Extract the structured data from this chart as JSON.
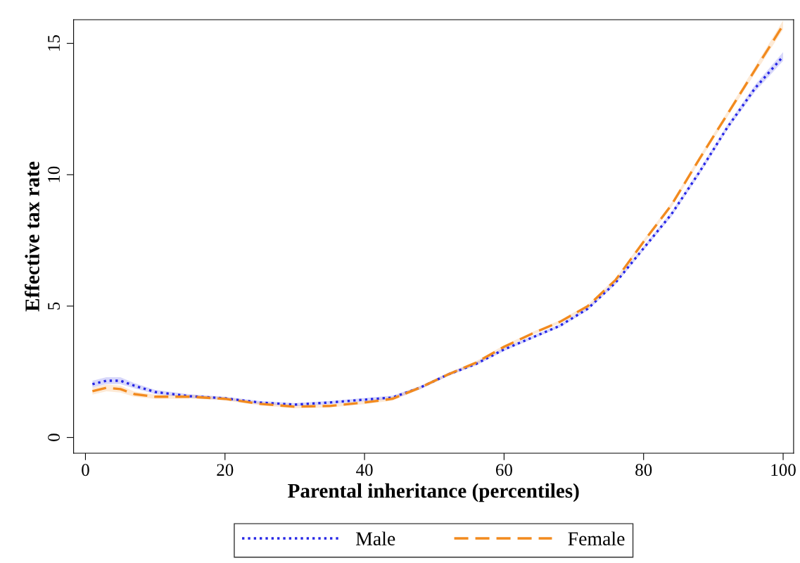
{
  "chart_data": {
    "type": "line",
    "xlabel": "Parental inheritance (percentiles)",
    "ylabel": "Effective tax rate",
    "x": [
      1,
      3,
      5,
      7,
      10,
      15,
      20,
      25,
      30,
      35,
      40,
      44,
      48,
      52,
      56,
      60,
      64,
      68,
      72,
      76,
      80,
      84,
      88,
      92,
      96,
      100
    ],
    "series": [
      {
        "name": "Male",
        "color": "#2626e6",
        "line_style": "dotted",
        "values": [
          2.03,
          2.16,
          2.16,
          1.97,
          1.73,
          1.57,
          1.49,
          1.33,
          1.25,
          1.33,
          1.44,
          1.52,
          1.9,
          2.4,
          2.8,
          3.35,
          3.8,
          4.25,
          4.9,
          5.9,
          7.2,
          8.5,
          10.1,
          11.8,
          13.3,
          14.5
        ],
        "lower": [
          1.9,
          2.03,
          2.03,
          1.87,
          1.65,
          1.5,
          1.43,
          1.27,
          1.19,
          1.27,
          1.38,
          1.45,
          1.84,
          2.34,
          2.74,
          3.29,
          3.74,
          4.19,
          4.84,
          5.83,
          7.12,
          8.41,
          10.0,
          11.7,
          13.17,
          14.33
        ],
        "upper": [
          2.16,
          2.29,
          2.29,
          2.07,
          1.81,
          1.64,
          1.55,
          1.39,
          1.31,
          1.39,
          1.5,
          1.59,
          1.96,
          2.46,
          2.86,
          3.41,
          3.86,
          4.31,
          4.96,
          5.97,
          7.28,
          8.59,
          10.2,
          11.9,
          13.43,
          14.67
        ]
      },
      {
        "name": "Female",
        "color": "#f28a1e",
        "line_style": "dashed",
        "values": [
          1.76,
          1.89,
          1.84,
          1.65,
          1.55,
          1.55,
          1.47,
          1.28,
          1.17,
          1.2,
          1.33,
          1.47,
          1.9,
          2.4,
          2.85,
          3.45,
          3.95,
          4.4,
          5.0,
          6.0,
          7.45,
          8.85,
          10.6,
          12.3,
          14.0,
          15.7
        ],
        "lower": [
          1.63,
          1.76,
          1.71,
          1.55,
          1.47,
          1.48,
          1.41,
          1.22,
          1.11,
          1.14,
          1.27,
          1.4,
          1.84,
          2.34,
          2.79,
          3.39,
          3.89,
          4.34,
          4.94,
          5.93,
          7.37,
          8.76,
          10.5,
          12.2,
          13.87,
          15.53
        ],
        "upper": [
          1.89,
          2.02,
          1.97,
          1.75,
          1.63,
          1.62,
          1.53,
          1.34,
          1.23,
          1.26,
          1.39,
          1.54,
          1.96,
          2.46,
          2.91,
          3.51,
          4.01,
          4.46,
          5.06,
          6.07,
          7.53,
          8.94,
          10.7,
          12.4,
          14.13,
          15.87
        ]
      }
    ],
    "xlim": [
      -1.7,
      101.5
    ],
    "xticks": [
      0,
      20,
      40,
      60,
      80,
      100
    ],
    "ylim": [
      -0.6,
      15.9
    ],
    "yticks": [
      0,
      5,
      10,
      15
    ],
    "grid": false,
    "legend": "bottom",
    "marker": "none"
  }
}
